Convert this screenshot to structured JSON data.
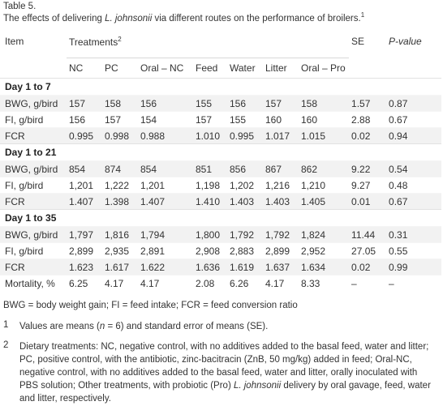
{
  "table_number": "Table 5.",
  "caption": {
    "prefix": "The effects of delivering ",
    "species": "L. johnsonii",
    "suffix": " via different routes on the performance of broilers.",
    "footnote_mark": "1"
  },
  "headers": {
    "item": "Item",
    "treatments": "Treatments",
    "treatments_mark": "2",
    "se": "SE",
    "p_value": "P-value",
    "columns": [
      "NC",
      "PC",
      "Oral – NC",
      "Feed",
      "Water",
      "Litter",
      "Oral – Pro"
    ]
  },
  "sections": [
    {
      "title": "Day 1 to 7",
      "rows": [
        {
          "item": "BWG, g/bird",
          "values": [
            "157",
            "158",
            "156",
            "155",
            "156",
            "157",
            "158"
          ],
          "se": "1.57",
          "p": "0.87"
        },
        {
          "item": "FI, g/bird",
          "values": [
            "156",
            "157",
            "154",
            "157",
            "155",
            "160",
            "160"
          ],
          "se": "2.88",
          "p": "0.67"
        },
        {
          "item": "FCR",
          "values": [
            "0.995",
            "0.998",
            "0.988",
            "1.010",
            "0.995",
            "1.017",
            "1.015"
          ],
          "se": "0.02",
          "p": "0.94"
        }
      ]
    },
    {
      "title": "Day 1 to 21",
      "rows": [
        {
          "item": "BWG, g/bird",
          "values": [
            "854",
            "874",
            "854",
            "851",
            "856",
            "867",
            "862"
          ],
          "se": "9.22",
          "p": "0.54"
        },
        {
          "item": "FI, g/bird",
          "values": [
            "1,201",
            "1,222",
            "1,201",
            "1,198",
            "1,202",
            "1,216",
            "1,210"
          ],
          "se": "9.27",
          "p": "0.48"
        },
        {
          "item": "FCR",
          "values": [
            "1.407",
            "1.398",
            "1.407",
            "1.410",
            "1.403",
            "1.403",
            "1.405"
          ],
          "se": "0.01",
          "p": "0.67"
        }
      ]
    },
    {
      "title": "Day 1 to 35",
      "rows": [
        {
          "item": "BWG, g/bird",
          "values": [
            "1,797",
            "1,816",
            "1,794",
            "1,800",
            "1,792",
            "1,792",
            "1,824"
          ],
          "se": "11.44",
          "p": "0.31"
        },
        {
          "item": "FI, g/bird",
          "values": [
            "2,899",
            "2,935",
            "2,891",
            "2,908",
            "2,883",
            "2,899",
            "2,952"
          ],
          "se": "27.05",
          "p": "0.55"
        },
        {
          "item": "FCR",
          "values": [
            "1.623",
            "1.617",
            "1.622",
            "1.636",
            "1.619",
            "1.637",
            "1.634"
          ],
          "se": "0.02",
          "p": "0.99"
        },
        {
          "item": "Mortality, %",
          "values": [
            "6.25",
            "4.17",
            "4.17",
            "2.08",
            "6.26",
            "4.17",
            "8.33"
          ],
          "se": "–",
          "p": "–"
        }
      ]
    }
  ],
  "abbreviations": "BWG = body weight gain; FI = feed intake; FCR = feed conversion ratio",
  "notes": [
    {
      "num": "1",
      "text_a": "Values are means (",
      "text_n": "n",
      "text_b": " = 6) and standard error of means (SE)."
    },
    {
      "num": "2",
      "text_a": "Dietary treatments: NC, negative control, with no additives added to the basal feed, water and litter; PC, positive control, with the antibiotic, zinc-bacitracin (ZnB, 50 mg/kg) added in feed; Oral-NC, negative control, with no additives added to the basal feed, water and litter, orally inoculated with PBS solution; Other treatments, with probiotic (Pro) ",
      "text_species": "L. johnsonii",
      "text_b": " delivery by oral gavage, feed, water and litter, respectively."
    }
  ]
}
